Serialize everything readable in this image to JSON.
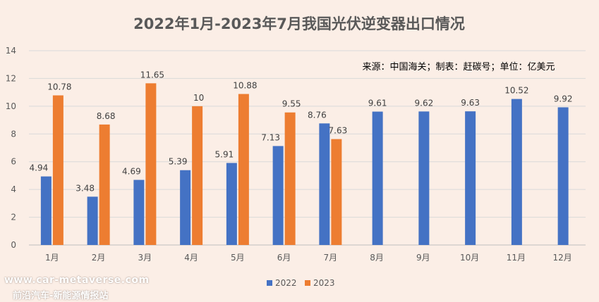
{
  "watermark": {
    "line1": "www.car-metaverse.com",
    "line2": "前沿汽车-新能源情报站"
  },
  "chart_data": {
    "type": "bar",
    "title": "2022年1月-2023年7月我国光伏逆变器出口情况",
    "source_note": "来源：中国海关；制表：赶碳号；单位：亿美元",
    "categories": [
      "1月",
      "2月",
      "3月",
      "4月",
      "5月",
      "6月",
      "7月",
      "8月",
      "9月",
      "10月",
      "11月",
      "12月"
    ],
    "series": [
      {
        "name": "2022",
        "color": "#4472c4",
        "values": [
          4.94,
          3.48,
          4.69,
          5.39,
          5.91,
          7.13,
          8.76,
          9.61,
          9.62,
          9.63,
          10.52,
          9.92
        ]
      },
      {
        "name": "2023",
        "color": "#ed7d31",
        "values": [
          10.78,
          8.68,
          11.65,
          10,
          10.88,
          9.55,
          7.63,
          null,
          null,
          null,
          null,
          null
        ]
      }
    ],
    "ylim": [
      0,
      14
    ],
    "yticks": [
      0,
      2,
      4,
      6,
      8,
      10,
      12,
      14
    ],
    "grid": true,
    "legend": "bottom",
    "data_labels": true
  }
}
